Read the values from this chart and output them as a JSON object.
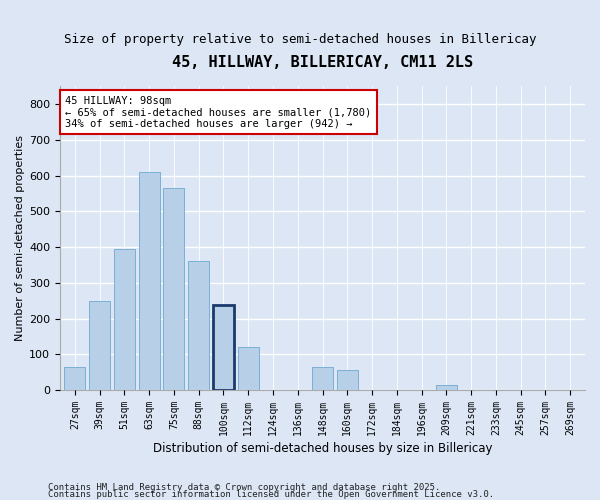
{
  "title": "45, HILLWAY, BILLERICAY, CM11 2LS",
  "subtitle": "Size of property relative to semi-detached houses in Billericay",
  "xlabel": "Distribution of semi-detached houses by size in Billericay",
  "ylabel": "Number of semi-detached properties",
  "footnote1": "Contains HM Land Registry data © Crown copyright and database right 2025.",
  "footnote2": "Contains public sector information licensed under the Open Government Licence v3.0.",
  "annotation_title": "45 HILLWAY: 98sqm",
  "annotation_line2": "← 65% of semi-detached houses are smaller (1,780)",
  "annotation_line3": "34% of semi-detached houses are larger (942) →",
  "bar_labels": [
    "27sqm",
    "39sqm",
    "51sqm",
    "63sqm",
    "75sqm",
    "88sqm",
    "100sqm",
    "112sqm",
    "124sqm",
    "136sqm",
    "148sqm",
    "160sqm",
    "172sqm",
    "184sqm",
    "196sqm",
    "209sqm",
    "221sqm",
    "233sqm",
    "245sqm",
    "257sqm",
    "269sqm"
  ],
  "bar_values": [
    65,
    248,
    395,
    610,
    565,
    360,
    238,
    120,
    0,
    0,
    65,
    55,
    0,
    0,
    0,
    15,
    0,
    0,
    0,
    0,
    0
  ],
  "highlight_index": 6,
  "bar_color_normal": "#b8cfe8",
  "bar_edge_color": "#7aafd4",
  "highlight_edge_color": "#1a3a6b",
  "annotation_box_edge": "#cc0000",
  "ylim": [
    0,
    850
  ],
  "yticks": [
    0,
    100,
    200,
    300,
    400,
    500,
    600,
    700,
    800
  ],
  "background_color": "#dce6f5",
  "plot_bg_color": "#dce6f5",
  "grid_color": "#ffffff",
  "title_fontsize": 11,
  "subtitle_fontsize": 9,
  "axis_label_fontsize": 8,
  "tick_fontsize": 7,
  "annotation_fontsize": 7.5
}
